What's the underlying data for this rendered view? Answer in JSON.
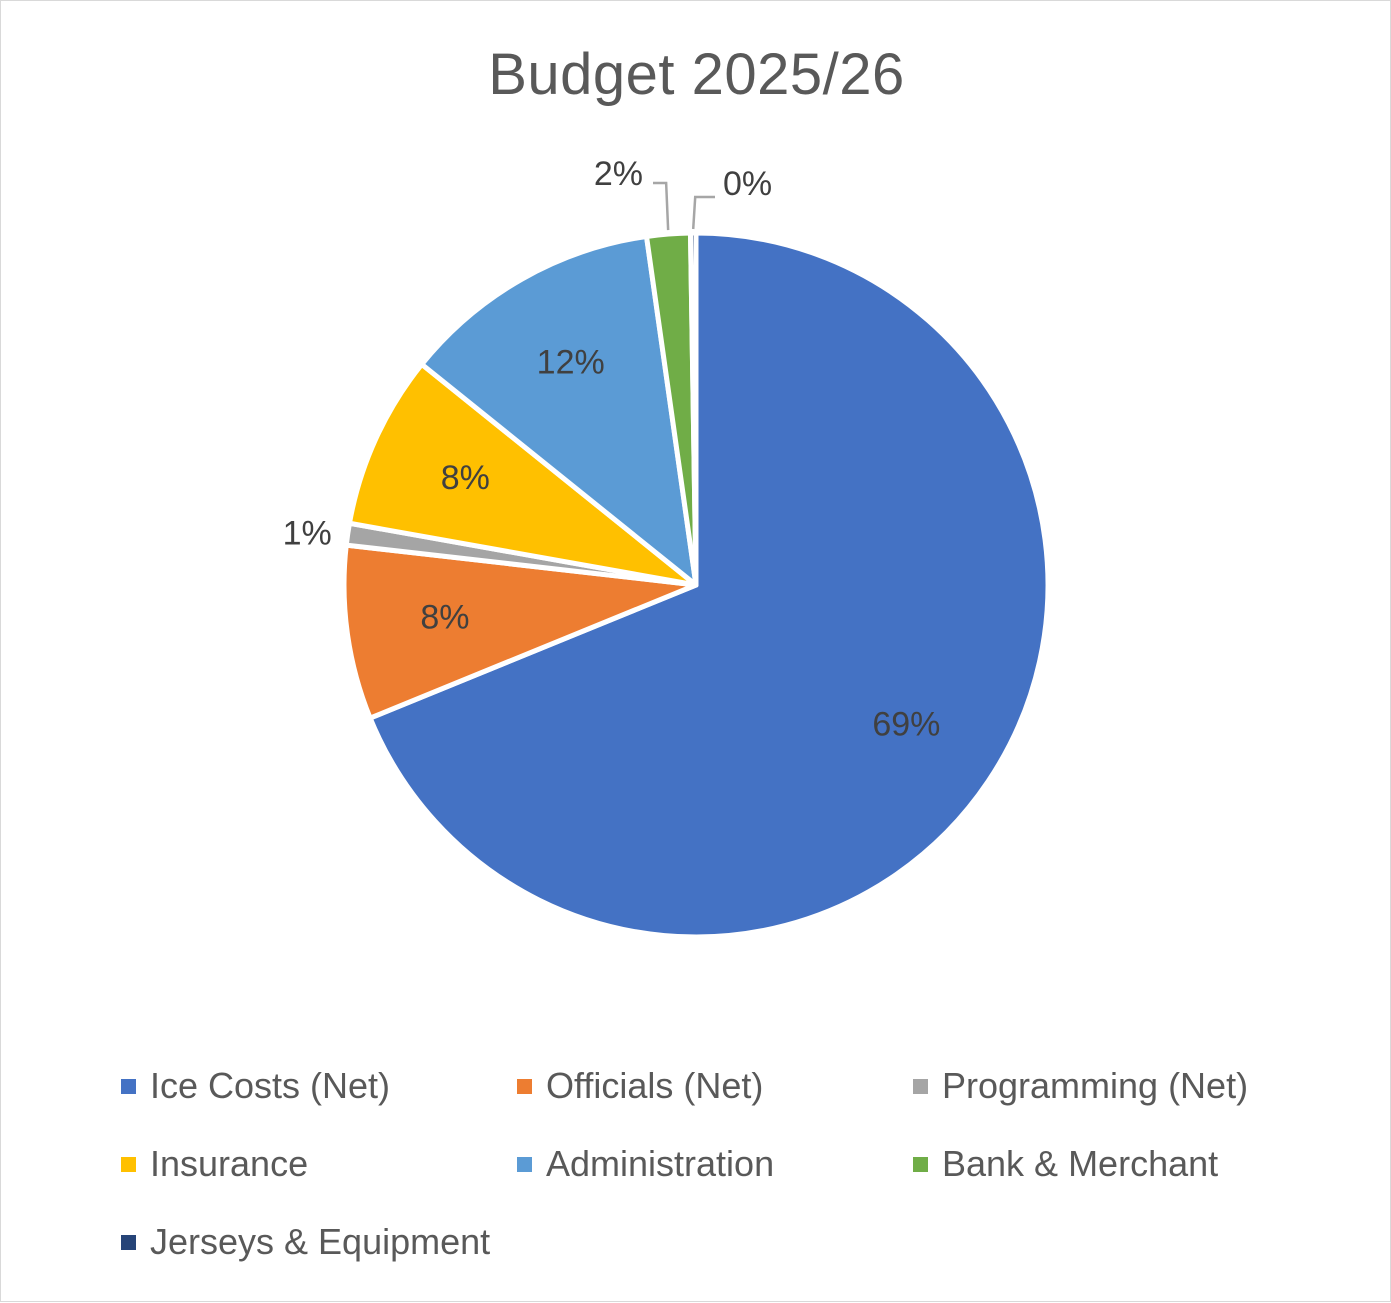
{
  "chart_data": {
    "type": "pie",
    "title": "Budget 2025/26",
    "categories": [
      "Ice Costs (Net)",
      "Officials (Net)",
      "Programming (Net)",
      "Insurance",
      "Administration",
      "Bank & Merchant",
      "Jerseys & Equipment"
    ],
    "values": [
      69,
      8,
      1,
      8,
      12,
      2,
      0
    ],
    "data_labels": [
      "69%",
      "8%",
      "1%",
      "8%",
      "12%",
      "2%",
      "0%"
    ],
    "colors": [
      "#4472C4",
      "#ED7D31",
      "#A5A5A5",
      "#FFC000",
      "#5B9BD5",
      "#70AD47",
      "#264478"
    ],
    "start_angle": "12 o'clock",
    "direction": "clockwise",
    "legend_position": "bottom"
  }
}
